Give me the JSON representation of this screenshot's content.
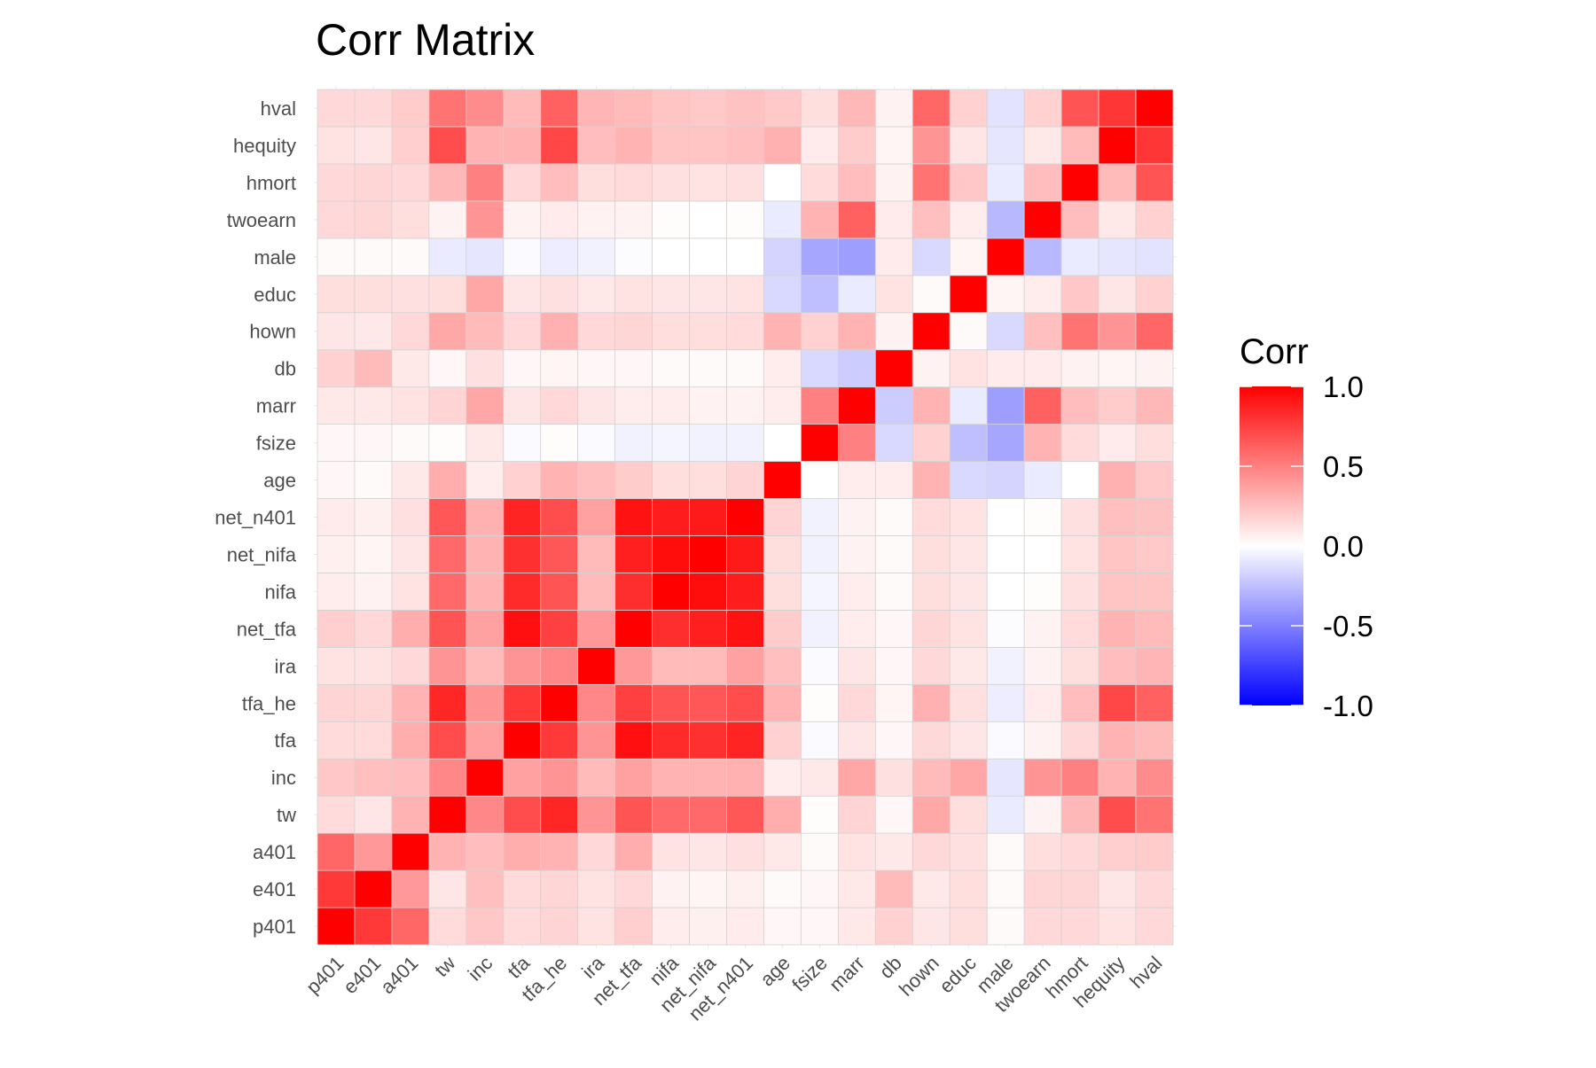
{
  "chart_data": {
    "type": "heatmap",
    "title": "Corr Matrix",
    "variables": [
      "p401",
      "e401",
      "a401",
      "tw",
      "inc",
      "tfa",
      "tfa_he",
      "ira",
      "net_tfa",
      "nifa",
      "net_nifa",
      "net_n401",
      "age",
      "fsize",
      "marr",
      "db",
      "hown",
      "educ",
      "male",
      "twoearn",
      "hmort",
      "hequity",
      "hval"
    ],
    "matrix": [
      [
        1.0,
        0.78,
        0.6,
        0.14,
        0.22,
        0.14,
        0.17,
        0.11,
        0.19,
        0.07,
        0.06,
        0.08,
        0.03,
        0.03,
        0.09,
        0.18,
        0.1,
        0.13,
        0.02,
        0.15,
        0.15,
        0.11,
        0.15
      ],
      [
        0.78,
        1.0,
        0.4,
        0.1,
        0.25,
        0.14,
        0.16,
        0.11,
        0.15,
        0.05,
        0.04,
        0.06,
        0.02,
        0.03,
        0.09,
        0.27,
        0.09,
        0.13,
        0.02,
        0.16,
        0.16,
        0.1,
        0.15
      ],
      [
        0.6,
        0.4,
        1.0,
        0.3,
        0.26,
        0.32,
        0.3,
        0.15,
        0.32,
        0.11,
        0.1,
        0.12,
        0.09,
        0.02,
        0.11,
        0.09,
        0.15,
        0.12,
        0.02,
        0.13,
        0.15,
        0.19,
        0.2
      ],
      [
        0.14,
        0.1,
        0.3,
        1.0,
        0.47,
        0.7,
        0.85,
        0.42,
        0.67,
        0.59,
        0.59,
        0.66,
        0.32,
        0.01,
        0.17,
        0.03,
        0.34,
        0.13,
        -0.08,
        0.05,
        0.28,
        0.7,
        0.55
      ],
      [
        0.22,
        0.25,
        0.26,
        0.47,
        1.0,
        0.37,
        0.42,
        0.27,
        0.37,
        0.3,
        0.3,
        0.31,
        0.07,
        0.09,
        0.35,
        0.12,
        0.27,
        0.35,
        -0.1,
        0.42,
        0.5,
        0.3,
        0.45
      ],
      [
        0.14,
        0.14,
        0.32,
        0.7,
        0.37,
        1.0,
        0.78,
        0.42,
        0.94,
        0.83,
        0.81,
        0.86,
        0.18,
        -0.02,
        0.1,
        0.03,
        0.15,
        0.1,
        -0.02,
        0.05,
        0.15,
        0.3,
        0.27
      ],
      [
        0.17,
        0.16,
        0.3,
        0.85,
        0.42,
        0.78,
        1.0,
        0.47,
        0.75,
        0.67,
        0.66,
        0.7,
        0.3,
        0.01,
        0.15,
        0.04,
        0.31,
        0.12,
        -0.07,
        0.08,
        0.26,
        0.72,
        0.62
      ],
      [
        0.11,
        0.11,
        0.15,
        0.42,
        0.27,
        0.42,
        0.47,
        1.0,
        0.4,
        0.27,
        0.27,
        0.37,
        0.25,
        -0.02,
        0.1,
        0.03,
        0.15,
        0.09,
        -0.05,
        0.05,
        0.13,
        0.26,
        0.29
      ],
      [
        0.19,
        0.15,
        0.32,
        0.67,
        0.37,
        0.94,
        0.75,
        0.4,
        1.0,
        0.82,
        0.88,
        0.93,
        0.2,
        -0.05,
        0.07,
        0.03,
        0.16,
        0.11,
        -0.01,
        0.05,
        0.14,
        0.3,
        0.27
      ],
      [
        0.07,
        0.05,
        0.11,
        0.59,
        0.3,
        0.83,
        0.67,
        0.27,
        0.82,
        1.0,
        0.95,
        0.89,
        0.13,
        -0.04,
        0.07,
        0.02,
        0.13,
        0.1,
        0.0,
        0.01,
        0.12,
        0.23,
        0.23
      ],
      [
        0.06,
        0.04,
        0.1,
        0.59,
        0.3,
        0.81,
        0.66,
        0.27,
        0.88,
        0.95,
        1.0,
        0.9,
        0.13,
        -0.05,
        0.05,
        0.02,
        0.13,
        0.1,
        0.0,
        0.0,
        0.11,
        0.23,
        0.21
      ],
      [
        0.08,
        0.06,
        0.12,
        0.66,
        0.31,
        0.86,
        0.7,
        0.37,
        0.93,
        0.89,
        0.9,
        1.0,
        0.17,
        -0.05,
        0.05,
        0.02,
        0.14,
        0.11,
        0.0,
        0.01,
        0.12,
        0.25,
        0.24
      ],
      [
        0.03,
        0.02,
        0.09,
        0.32,
        0.07,
        0.18,
        0.3,
        0.25,
        0.2,
        0.13,
        0.13,
        0.17,
        1.0,
        0.0,
        0.07,
        0.07,
        0.3,
        -0.15,
        -0.17,
        -0.08,
        0.0,
        0.31,
        0.21
      ],
      [
        0.03,
        0.03,
        0.02,
        0.01,
        0.09,
        -0.02,
        0.01,
        -0.02,
        -0.05,
        -0.04,
        -0.05,
        -0.05,
        0.0,
        1.0,
        0.5,
        -0.15,
        0.18,
        -0.25,
        -0.35,
        0.3,
        0.14,
        0.08,
        0.13
      ],
      [
        0.09,
        0.09,
        0.11,
        0.17,
        0.35,
        0.1,
        0.15,
        0.1,
        0.07,
        0.07,
        0.05,
        0.05,
        0.07,
        0.5,
        1.0,
        -0.2,
        0.3,
        -0.08,
        -0.38,
        0.62,
        0.26,
        0.2,
        0.28
      ],
      [
        0.18,
        0.27,
        0.09,
        0.03,
        0.12,
        0.03,
        0.04,
        0.03,
        0.03,
        0.02,
        0.02,
        0.02,
        0.07,
        -0.15,
        -0.2,
        1.0,
        0.05,
        0.11,
        0.08,
        0.08,
        0.05,
        0.04,
        0.05
      ],
      [
        0.1,
        0.09,
        0.15,
        0.34,
        0.27,
        0.15,
        0.31,
        0.15,
        0.16,
        0.13,
        0.13,
        0.14,
        0.3,
        0.18,
        0.3,
        0.05,
        1.0,
        0.02,
        -0.15,
        0.25,
        0.55,
        0.42,
        0.6
      ],
      [
        0.13,
        0.13,
        0.12,
        0.13,
        0.35,
        0.1,
        0.12,
        0.09,
        0.11,
        0.1,
        0.1,
        0.11,
        -0.15,
        -0.25,
        -0.08,
        0.11,
        0.02,
        1.0,
        0.04,
        0.07,
        0.22,
        0.1,
        0.18
      ],
      [
        0.02,
        0.02,
        0.02,
        -0.08,
        -0.1,
        -0.02,
        -0.07,
        -0.05,
        -0.01,
        0.0,
        0.0,
        0.0,
        -0.17,
        -0.35,
        -0.38,
        0.08,
        -0.15,
        0.04,
        1.0,
        -0.28,
        -0.08,
        -0.1,
        -0.11
      ],
      [
        0.15,
        0.16,
        0.13,
        0.05,
        0.42,
        0.05,
        0.08,
        0.05,
        0.05,
        0.01,
        0.0,
        0.01,
        -0.08,
        0.3,
        0.62,
        0.08,
        0.25,
        0.07,
        -0.28,
        1.0,
        0.26,
        0.09,
        0.18
      ],
      [
        0.15,
        0.16,
        0.15,
        0.28,
        0.5,
        0.15,
        0.26,
        0.13,
        0.14,
        0.12,
        0.11,
        0.12,
        0.0,
        0.14,
        0.26,
        0.05,
        0.55,
        0.22,
        -0.08,
        0.26,
        1.0,
        0.27,
        0.67
      ],
      [
        0.11,
        0.1,
        0.19,
        0.7,
        0.3,
        0.3,
        0.72,
        0.26,
        0.3,
        0.23,
        0.23,
        0.25,
        0.31,
        0.08,
        0.2,
        0.04,
        0.42,
        0.1,
        -0.1,
        0.09,
        0.27,
        1.0,
        0.79
      ],
      [
        0.15,
        0.15,
        0.2,
        0.55,
        0.45,
        0.27,
        0.62,
        0.29,
        0.27,
        0.23,
        0.21,
        0.24,
        0.21,
        0.13,
        0.28,
        0.05,
        0.6,
        0.18,
        -0.11,
        0.18,
        0.67,
        0.79,
        1.0
      ]
    ],
    "color_scale": {
      "low": "#0000ff",
      "mid": "#ffffff",
      "high": "#ff0000",
      "limits": [
        -1,
        1
      ]
    },
    "legend": {
      "title": "Corr",
      "position": "right",
      "ticks": [
        1.0,
        0.5,
        0.0,
        -0.5,
        -1.0
      ],
      "tick_labels": [
        "1.0",
        "0.5",
        "0.0",
        "-0.5",
        "-1.0"
      ]
    },
    "grid": true
  }
}
